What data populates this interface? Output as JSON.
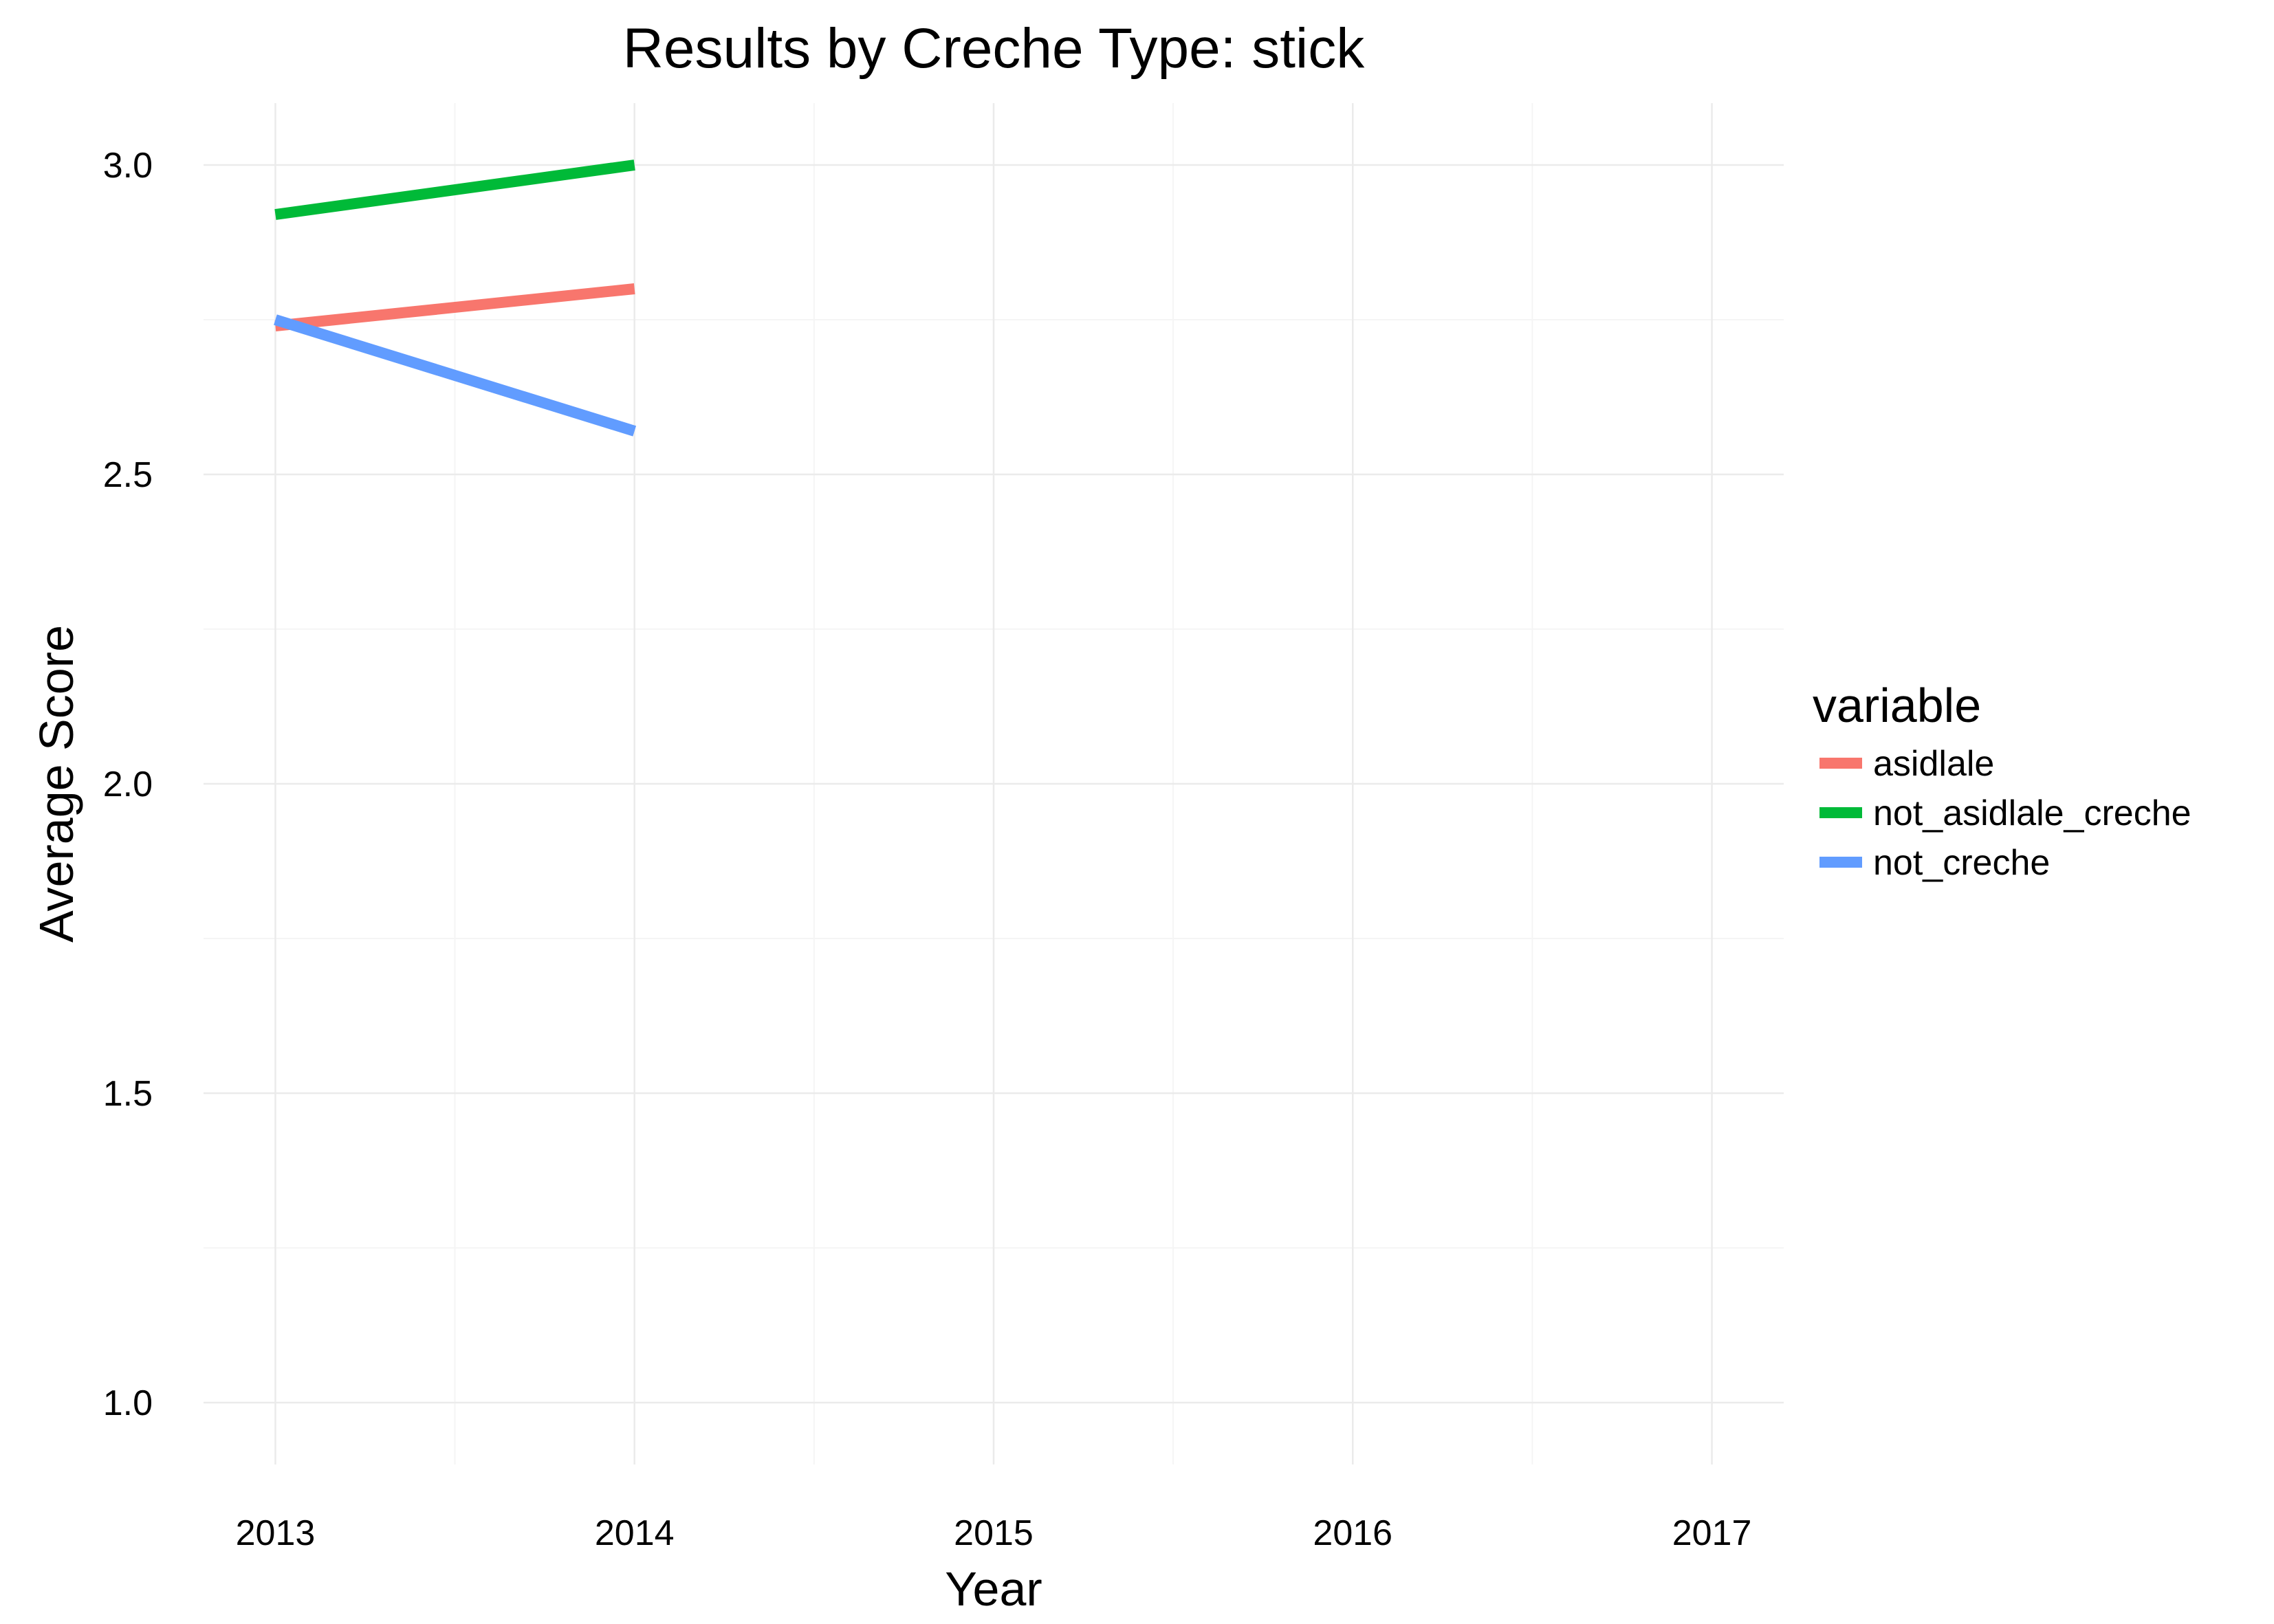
{
  "chart_data": {
    "type": "line",
    "title": "Results by Creche Type: stick",
    "xlabel": "Year",
    "ylabel": "Average Score",
    "x": [
      2013,
      2014
    ],
    "xlim": [
      2012.8,
      2017.2
    ],
    "ylim": [
      0.9,
      3.1
    ],
    "x_ticks": [
      "2013",
      "2014",
      "2015",
      "2016",
      "2017"
    ],
    "y_ticks": [
      "1.0",
      "1.5",
      "2.0",
      "2.5",
      "3.0"
    ],
    "grid": true,
    "legend_position": "right",
    "legend_title": "variable",
    "series": [
      {
        "name": "asidlale",
        "color": "#F8766D",
        "values": [
          2.74,
          2.8
        ]
      },
      {
        "name": "not_asidlale_creche",
        "color": "#00BA38",
        "values": [
          2.92,
          3.0
        ]
      },
      {
        "name": "not_creche",
        "color": "#619CFF",
        "values": [
          2.75,
          2.57
        ]
      }
    ]
  }
}
